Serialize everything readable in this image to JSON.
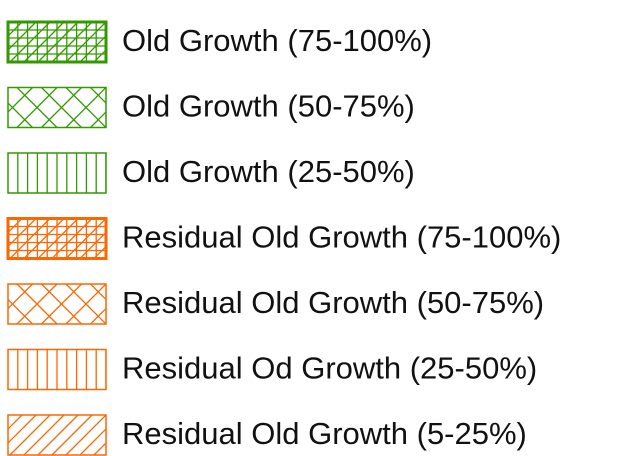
{
  "legend": {
    "items": [
      {
        "label": "Old Growth (75-100%)",
        "color": "#339900",
        "pattern": "dense-grid"
      },
      {
        "label": "Old Growth (50-75%)",
        "color": "#339900",
        "pattern": "crosshatch"
      },
      {
        "label": "Old Growth (25-50%)",
        "color": "#339900",
        "pattern": "vertical"
      },
      {
        "label": "Residual Old Growth (75-100%)",
        "color": "#ff6600",
        "pattern": "dense-grid"
      },
      {
        "label": "Residual Old Growth (50-75%)",
        "color": "#ff6600",
        "pattern": "crosshatch"
      },
      {
        "label": "Residual Od Growth (25-50%)",
        "color": "#ff6600",
        "pattern": "vertical"
      },
      {
        "label": "Residual Old Growth (5-25%)",
        "color": "#ff6600",
        "pattern": "diagonal"
      }
    ]
  }
}
